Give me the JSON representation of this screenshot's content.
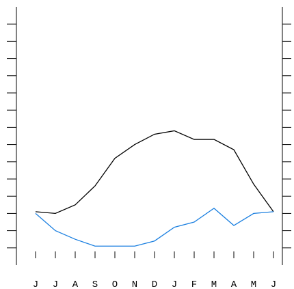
{
  "chart_data": {
    "type": "line",
    "categories": [
      "J",
      "J",
      "A",
      "S",
      "O",
      "N",
      "D",
      "J",
      "F",
      "M",
      "A",
      "M",
      "J"
    ],
    "series": [
      {
        "color": "#000000",
        "values": [
          2.1,
          2.0,
          2.5,
          3.6,
          5.2,
          6.0,
          6.6,
          6.8,
          6.3,
          6.3,
          5.7,
          3.7,
          2.1
        ]
      },
      {
        "color": "#1a7fe0",
        "values": [
          2.0,
          1.0,
          0.5,
          0.1,
          0.1,
          0.1,
          0.4,
          1.2,
          1.5,
          2.3,
          1.3,
          2.0,
          2.1
        ]
      }
    ],
    "ylim": [
      -1,
      14
    ],
    "yticks": [
      0,
      1,
      2,
      3,
      4,
      5,
      6,
      7,
      8,
      9,
      10,
      11,
      12,
      13
    ]
  }
}
